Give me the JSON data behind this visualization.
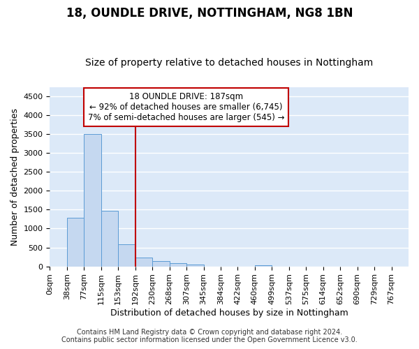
{
  "title": "18, OUNDLE DRIVE, NOTTINGHAM, NG8 1BN",
  "subtitle": "Size of property relative to detached houses in Nottingham",
  "xlabel": "Distribution of detached houses by size in Nottingham",
  "ylabel": "Number of detached properties",
  "bin_labels": [
    "0sqm",
    "38sqm",
    "77sqm",
    "115sqm",
    "153sqm",
    "192sqm",
    "230sqm",
    "268sqm",
    "307sqm",
    "345sqm",
    "384sqm",
    "422sqm",
    "460sqm",
    "499sqm",
    "537sqm",
    "575sqm",
    "614sqm",
    "652sqm",
    "690sqm",
    "729sqm",
    "767sqm"
  ],
  "bar_heights": [
    0,
    1280,
    3500,
    1470,
    590,
    240,
    140,
    80,
    40,
    0,
    0,
    0,
    30,
    0,
    0,
    0,
    0,
    0,
    0,
    0,
    0
  ],
  "bar_color": "#c5d8f0",
  "bar_edge_color": "#5b9bd5",
  "vline_x_index": 5,
  "vline_color": "#c00000",
  "annotation_line1": "18 OUNDLE DRIVE: 187sqm",
  "annotation_line2": "← 92% of detached houses are smaller (6,745)",
  "annotation_line3": "7% of semi-detached houses are larger (545) →",
  "annotation_box_color": "#ffffff",
  "annotation_box_edge": "#c00000",
  "ylim": [
    0,
    4750
  ],
  "yticks": [
    0,
    500,
    1000,
    1500,
    2000,
    2500,
    3000,
    3500,
    4000,
    4500
  ],
  "footer_line1": "Contains HM Land Registry data © Crown copyright and database right 2024.",
  "footer_line2": "Contains public sector information licensed under the Open Government Licence v3.0.",
  "fig_bg_color": "#ffffff",
  "plot_bg_color": "#dce9f8",
  "grid_color": "#ffffff",
  "title_fontsize": 12,
  "subtitle_fontsize": 10,
  "label_fontsize": 9,
  "tick_fontsize": 8,
  "annotation_fontsize": 8.5,
  "footer_fontsize": 7
}
